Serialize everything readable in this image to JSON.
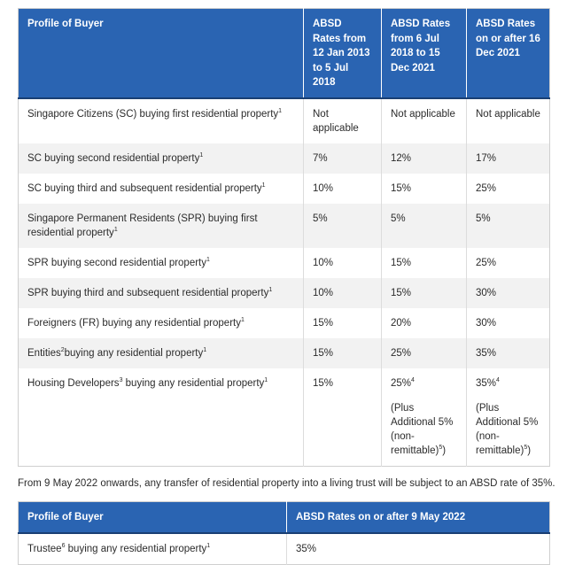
{
  "table1": {
    "headers": [
      "Profile of Buyer",
      "ABSD Rates from 12 Jan 2013 to 5 Jul 2018",
      "ABSD Rates from 6 Jul 2018 to 15 Dec 2021",
      "ABSD Rates on or after 16 Dec 2021"
    ],
    "rows": [
      {
        "profile_pre": "Singapore Citizens (SC) buying first residential property",
        "profile_sup": "1",
        "profile_post": "",
        "profile_sup2": "",
        "c1": "Not applicable",
        "c2": "Not applicable",
        "c3": "Not applicable"
      },
      {
        "profile_pre": "SC buying second residential property",
        "profile_sup": "1",
        "profile_post": "",
        "profile_sup2": "",
        "c1": "7%",
        "c2": "12%",
        "c3": "17%"
      },
      {
        "profile_pre": "SC buying third and subsequent residential property",
        "profile_sup": "1",
        "profile_post": "",
        "profile_sup2": "",
        "c1": "10%",
        "c2": "15%",
        "c3": "25%"
      },
      {
        "profile_pre": "Singapore Permanent Residents (SPR) buying first residential property",
        "profile_sup": "1",
        "profile_post": "",
        "profile_sup2": "",
        "c1": "5%",
        "c2": "5%",
        "c3": "5%"
      },
      {
        "profile_pre": "SPR buying second residential property",
        "profile_sup": "1",
        "profile_post": "",
        "profile_sup2": "",
        "c1": "10%",
        "c2": "15%",
        "c3": "25%"
      },
      {
        "profile_pre": "SPR buying third and subsequent residential property",
        "profile_sup": "1",
        "profile_post": "",
        "profile_sup2": "",
        "c1": "10%",
        "c2": "15%",
        "c3": "30%"
      },
      {
        "profile_pre": "Foreigners (FR) buying any residential property",
        "profile_sup": "1",
        "profile_post": "",
        "profile_sup2": "",
        "c1": "15%",
        "c2": "20%",
        "c3": "30%"
      },
      {
        "profile_pre": "Entities",
        "profile_sup": "2",
        "profile_post": "buying any residential property",
        "profile_sup2": "1",
        "c1": "15%",
        "c2": "25%",
        "c3": "35%"
      }
    ],
    "developer_row": {
      "profile_pre": "Housing Developers",
      "profile_sup": "3",
      "profile_post": " buying any residential property",
      "profile_sup2": "1",
      "c1": "15%",
      "c2": "25%",
      "c2_sup": "4",
      "c2_note": "(Plus Additional 5% (non-remittable)",
      "c2_note_sup": "5",
      "c2_note_end": ")",
      "c3": "35%",
      "c3_sup": "4",
      "c3_note": "(Plus Additional 5% (non-remittable)",
      "c3_note_sup": "5",
      "c3_note_end": ")"
    }
  },
  "note": "From 9 May 2022 onwards, any transfer of residential property into a living trust will be subject to an ABSD rate of 35%.",
  "table2": {
    "headers": [
      "Profile of Buyer",
      "ABSD Rates on or after 9 May 2022"
    ],
    "row": {
      "profile_pre": "Trustee",
      "profile_sup": "6",
      "profile_post": " buying any residential property",
      "profile_sup2": "1",
      "value": "35%"
    }
  },
  "colors": {
    "header_bg": "#2a64b2",
    "header_text": "#ffffff",
    "alt_row": "#f2f2f2"
  }
}
